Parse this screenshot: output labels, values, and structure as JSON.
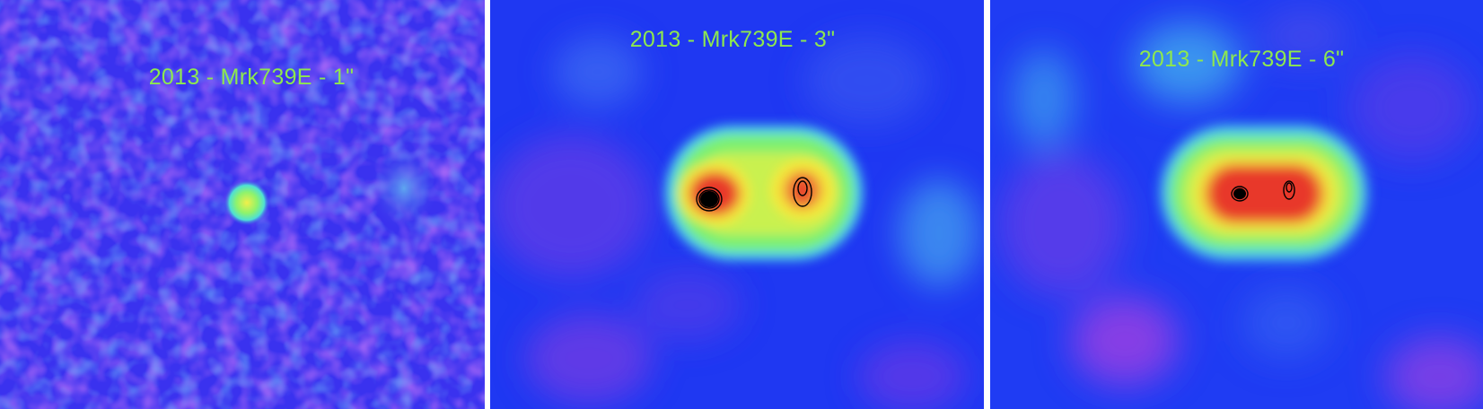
{
  "panels": [
    {
      "id": "p1",
      "label": "2013 - Mrk739E - 1\"",
      "background": "#3a32ef"
    },
    {
      "id": "p2",
      "label": "2013 - Mrk739E - 3\"",
      "background": "#1f38f2"
    },
    {
      "id": "p3",
      "label": "2013 - Mrk739E - 6\"",
      "background": "#1f3cf3"
    }
  ],
  "colors": {
    "label": "#8ee84e",
    "separator": "#ffffff",
    "peak": "#e8382c",
    "high": "#f5e83a",
    "mid": "#7cf070",
    "low": "#4fd7e8",
    "contour": "#000000"
  }
}
